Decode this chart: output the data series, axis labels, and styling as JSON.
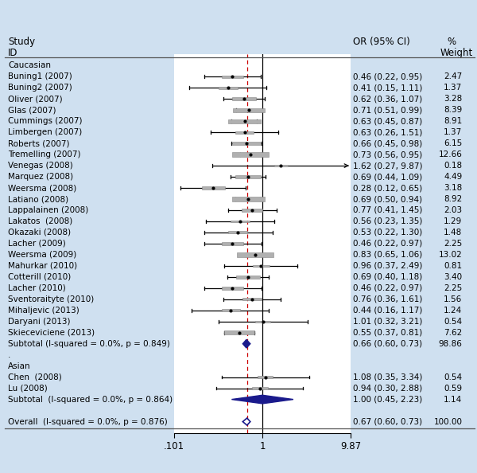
{
  "studies": [
    {
      "label": "Caucasian",
      "or": null,
      "ci_low": null,
      "ci_high": null,
      "weight": null,
      "is_header": true
    },
    {
      "label": "Buning1 (2007)",
      "or": 0.46,
      "ci_low": 0.22,
      "ci_high": 0.95,
      "weight": 2.47,
      "or_text": "0.46 (0.22, 0.95)",
      "w_text": "2.47"
    },
    {
      "label": "Buning2 (2007)",
      "or": 0.41,
      "ci_low": 0.15,
      "ci_high": 1.11,
      "weight": 1.37,
      "or_text": "0.41 (0.15, 1.11)",
      "w_text": "1.37"
    },
    {
      "label": "Oliver (2007)",
      "or": 0.62,
      "ci_low": 0.36,
      "ci_high": 1.07,
      "weight": 3.28,
      "or_text": "0.62 (0.36, 1.07)",
      "w_text": "3.28"
    },
    {
      "label": "Glas (2007)",
      "or": 0.71,
      "ci_low": 0.51,
      "ci_high": 0.99,
      "weight": 8.39,
      "or_text": "0.71 (0.51, 0.99)",
      "w_text": "8.39"
    },
    {
      "label": "Cummings (2007)",
      "or": 0.63,
      "ci_low": 0.45,
      "ci_high": 0.87,
      "weight": 8.91,
      "or_text": "0.63 (0.45, 0.87)",
      "w_text": "8.91"
    },
    {
      "label": "Limbergen (2007)",
      "or": 0.63,
      "ci_low": 0.26,
      "ci_high": 1.51,
      "weight": 1.37,
      "or_text": "0.63 (0.26, 1.51)",
      "w_text": "1.37"
    },
    {
      "label": "Roberts (2007)",
      "or": 0.66,
      "ci_low": 0.45,
      "ci_high": 0.98,
      "weight": 6.15,
      "or_text": "0.66 (0.45, 0.98)",
      "w_text": "6.15"
    },
    {
      "label": "Tremelling (2007)",
      "or": 0.73,
      "ci_low": 0.56,
      "ci_high": 0.95,
      "weight": 12.66,
      "or_text": "0.73 (0.56, 0.95)",
      "w_text": "12.66"
    },
    {
      "label": "Venegas (2008)",
      "or": 1.62,
      "ci_low": 0.27,
      "ci_high": 9.87,
      "weight": 0.18,
      "or_text": "1.62 (0.27, 9.87)",
      "w_text": "0.18",
      "arrow": true
    },
    {
      "label": "Marquez (2008)",
      "or": 0.69,
      "ci_low": 0.44,
      "ci_high": 1.09,
      "weight": 4.49,
      "or_text": "0.69 (0.44, 1.09)",
      "w_text": "4.49"
    },
    {
      "label": "Weersma (2008)",
      "or": 0.28,
      "ci_low": 0.12,
      "ci_high": 0.65,
      "weight": 3.18,
      "or_text": "0.28 (0.12, 0.65)",
      "w_text": "3.18"
    },
    {
      "label": "Latiano (2008)",
      "or": 0.69,
      "ci_low": 0.5,
      "ci_high": 0.94,
      "weight": 8.92,
      "or_text": "0.69 (0.50, 0.94)",
      "w_text": "8.92"
    },
    {
      "label": "Lappalainen (2008)",
      "or": 0.77,
      "ci_low": 0.41,
      "ci_high": 1.45,
      "weight": 2.03,
      "or_text": "0.77 (0.41, 1.45)",
      "w_text": "2.03"
    },
    {
      "label": "Lakatos  (2008)",
      "or": 0.56,
      "ci_low": 0.23,
      "ci_high": 1.35,
      "weight": 1.29,
      "or_text": "0.56 (0.23, 1.35)",
      "w_text": "1.29"
    },
    {
      "label": "Okazaki (2008)",
      "or": 0.53,
      "ci_low": 0.22,
      "ci_high": 1.3,
      "weight": 1.48,
      "or_text": "0.53 (0.22, 1.30)",
      "w_text": "1.48"
    },
    {
      "label": "Lacher (2009)",
      "or": 0.46,
      "ci_low": 0.22,
      "ci_high": 0.97,
      "weight": 2.25,
      "or_text": "0.46 (0.22, 0.97)",
      "w_text": "2.25"
    },
    {
      "label": "Weersma (2009)",
      "or": 0.83,
      "ci_low": 0.65,
      "ci_high": 1.06,
      "weight": 13.02,
      "or_text": "0.83 (0.65, 1.06)",
      "w_text": "13.02"
    },
    {
      "label": "Mahurkar (2010)",
      "or": 0.96,
      "ci_low": 0.37,
      "ci_high": 2.49,
      "weight": 0.81,
      "or_text": "0.96 (0.37, 2.49)",
      "w_text": "0.81"
    },
    {
      "label": "Cotterill (2010)",
      "or": 0.69,
      "ci_low": 0.4,
      "ci_high": 1.18,
      "weight": 3.4,
      "or_text": "0.69 (0.40, 1.18)",
      "w_text": "3.40"
    },
    {
      "label": "Lacher (2010)",
      "or": 0.46,
      "ci_low": 0.22,
      "ci_high": 0.97,
      "weight": 2.25,
      "or_text": "0.46 (0.22, 0.97)",
      "w_text": "2.25"
    },
    {
      "label": "Sventoraityte (2010)",
      "or": 0.76,
      "ci_low": 0.36,
      "ci_high": 1.61,
      "weight": 1.56,
      "or_text": "0.76 (0.36, 1.61)",
      "w_text": "1.56"
    },
    {
      "label": "Mihaljevic (2013)",
      "or": 0.44,
      "ci_low": 0.16,
      "ci_high": 1.17,
      "weight": 1.24,
      "or_text": "0.44 (0.16, 1.17)",
      "w_text": "1.24"
    },
    {
      "label": "Daryani (2013)",
      "or": 1.01,
      "ci_low": 0.32,
      "ci_high": 3.21,
      "weight": 0.54,
      "or_text": "1.01 (0.32, 3.21)",
      "w_text": "0.54"
    },
    {
      "label": "Skieceviciene (2013)",
      "or": 0.55,
      "ci_low": 0.37,
      "ci_high": 0.81,
      "weight": 7.62,
      "or_text": "0.55 (0.37, 0.81)",
      "w_text": "7.62"
    },
    {
      "label": "Subtotal (I-squared = 0.0%, p = 0.849)",
      "or": 0.66,
      "ci_low": 0.6,
      "ci_high": 0.73,
      "weight": 98.86,
      "or_text": "0.66 (0.60, 0.73)",
      "w_text": "98.86",
      "is_subtotal": true
    },
    {
      "label": ".",
      "or": null,
      "ci_low": null,
      "ci_high": null,
      "weight": null,
      "is_spacer": true
    },
    {
      "label": "Asian",
      "or": null,
      "ci_low": null,
      "ci_high": null,
      "weight": null,
      "is_header": true
    },
    {
      "label": "Chen  (2008)",
      "or": 1.08,
      "ci_low": 0.35,
      "ci_high": 3.34,
      "weight": 0.54,
      "or_text": "1.08 (0.35, 3.34)",
      "w_text": "0.54"
    },
    {
      "label": "Lu (2008)",
      "or": 0.94,
      "ci_low": 0.3,
      "ci_high": 2.88,
      "weight": 0.59,
      "or_text": "0.94 (0.30, 2.88)",
      "w_text": "0.59"
    },
    {
      "label": "Subtotal  (I-squared = 0.0%, p = 0.864)",
      "or": 1.0,
      "ci_low": 0.45,
      "ci_high": 2.23,
      "weight": 1.14,
      "or_text": "1.00 (0.45, 2.23)",
      "w_text": "1.14",
      "is_subtotal": true
    },
    {
      "label": "",
      "or": null,
      "ci_low": null,
      "ci_high": null,
      "weight": null,
      "is_spacer": true
    },
    {
      "label": "Overall  (I-squared = 0.0%, p = 0.876)",
      "or": 0.67,
      "ci_low": 0.6,
      "ci_high": 0.73,
      "weight": 100.0,
      "or_text": "0.67 (0.60, 0.73)",
      "w_text": "100.00",
      "is_overall": true
    }
  ],
  "x_min": 0.101,
  "x_max": 9.87,
  "x_ticks": [
    0.101,
    1.0,
    9.87
  ],
  "x_tick_labels": [
    ".101",
    "1",
    "9.87"
  ],
  "ref_line": 1.0,
  "dashed_line": 0.67,
  "bg_color": "#cfe0f0",
  "plot_bg": "#ffffff",
  "diamond_subtotal_color": "#1a1a8c",
  "diamond_subtotal_edge": "#1a1a8c",
  "diamond_overall_color": "#ffffff",
  "diamond_overall_edge": "#1a1a8c",
  "box_color": "#b0b0b0",
  "box_edge": "#888888",
  "ci_color": "#000000",
  "dashed_color": "#cc0000",
  "ref_color": "#000000",
  "text_color": "#000000",
  "header_color": "#000000",
  "fontsize_label": 7.5,
  "fontsize_header": 8.5,
  "fontsize_tick": 8.5
}
